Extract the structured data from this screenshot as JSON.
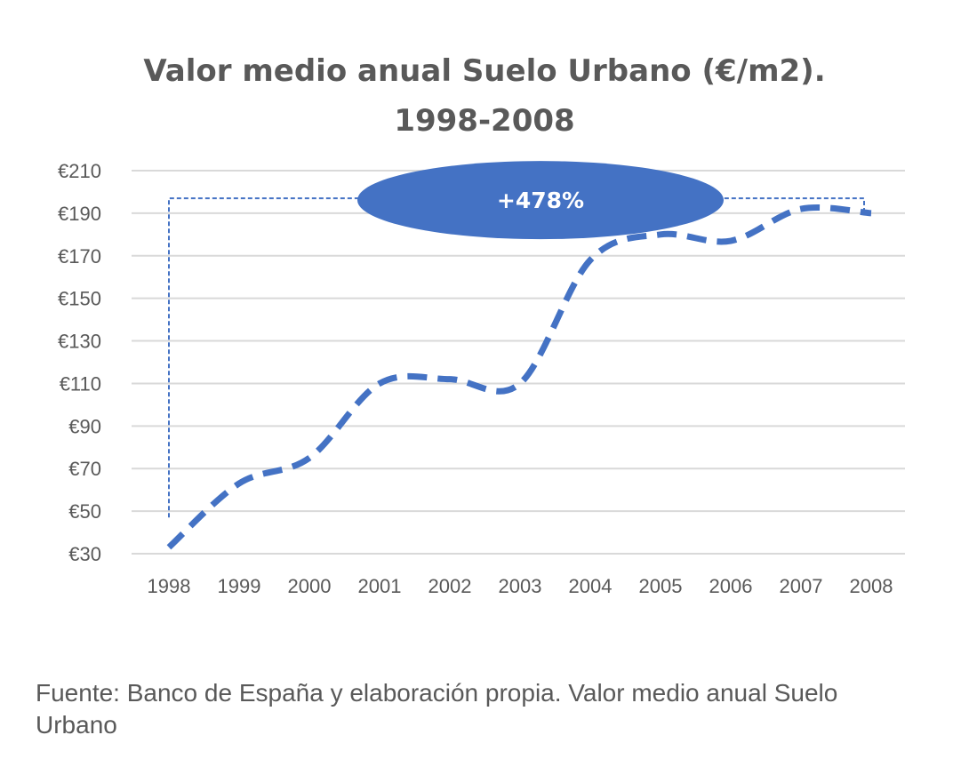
{
  "chart_data": {
    "type": "line",
    "title_line1": "Valor medio anual Suelo Urbano (€/m2).",
    "title_line2": "1998-2008",
    "xlabel": "",
    "ylabel": "",
    "categories": [
      "1998",
      "1999",
      "2000",
      "2001",
      "2002",
      "2003",
      "2004",
      "2005",
      "2006",
      "2007",
      "2008"
    ],
    "y_ticks": [
      "€30",
      "€50",
      "€70",
      "€90",
      "€110",
      "€130",
      "€150",
      "€170",
      "€190",
      "€210"
    ],
    "ylim": [
      30,
      210
    ],
    "grid": true,
    "series": [
      {
        "values": [
          33,
          63,
          75,
          110,
          112,
          110,
          168,
          180,
          177,
          192,
          190
        ],
        "line_style": "dashed",
        "color": "#4472c4"
      }
    ],
    "annotation": {
      "label": "+478%",
      "shape": "ellipse",
      "color": "#4472c4",
      "from_category": "1998",
      "to_category": "2008",
      "bracket_level": 197
    },
    "gridline_color": "#d9d9d9"
  },
  "source_note": "Fuente: Banco de España y elaboración propia. Valor medio anual Suelo Urbano"
}
